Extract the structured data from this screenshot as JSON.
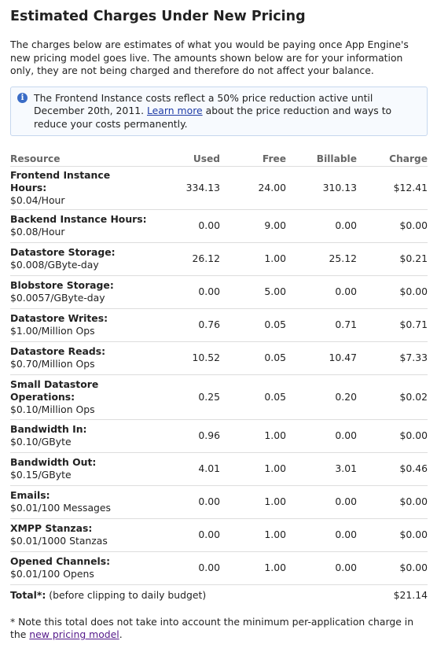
{
  "page": {
    "title": "Estimated Charges Under New Pricing",
    "intro": "The charges below are estimates of what you would be paying once App Engine's new pricing model goes live. The amounts shown below are for your information only, they are not being charged and therefore do not affect your balance."
  },
  "notice": {
    "icon": "info-icon",
    "text_before": "The Frontend Instance costs reflect a 50% price reduction active until December 20th, 2011.",
    "link_label": "Learn more",
    "text_after": "about the price reduction and ways to reduce your costs permanently."
  },
  "table": {
    "headers": {
      "resource": "Resource",
      "used": "Used",
      "free": "Free",
      "billable": "Billable",
      "charge": "Charge"
    },
    "rows": [
      {
        "name": "Frontend Instance Hours:",
        "rate": "$0.04/Hour",
        "used": "334.13",
        "free": "24.00",
        "billable": "310.13",
        "charge": "$12.41"
      },
      {
        "name": "Backend Instance Hours:",
        "rate": "$0.08/Hour",
        "used": "0.00",
        "free": "9.00",
        "billable": "0.00",
        "charge": "$0.00"
      },
      {
        "name": "Datastore Storage:",
        "rate": "$0.008/GByte-day",
        "used": "26.12",
        "free": "1.00",
        "billable": "25.12",
        "charge": "$0.21"
      },
      {
        "name": "Blobstore Storage:",
        "rate": "$0.0057/GByte-day",
        "used": "0.00",
        "free": "5.00",
        "billable": "0.00",
        "charge": "$0.00"
      },
      {
        "name": "Datastore Writes:",
        "rate": "$1.00/Million Ops",
        "used": "0.76",
        "free": "0.05",
        "billable": "0.71",
        "charge": "$0.71"
      },
      {
        "name": "Datastore Reads:",
        "rate": "$0.70/Million Ops",
        "used": "10.52",
        "free": "0.05",
        "billable": "10.47",
        "charge": "$7.33"
      },
      {
        "name": "Small Datastore Operations:",
        "rate": "$0.10/Million Ops",
        "used": "0.25",
        "free": "0.05",
        "billable": "0.20",
        "charge": "$0.02"
      },
      {
        "name": "Bandwidth In:",
        "rate": "$0.10/GByte",
        "used": "0.96",
        "free": "1.00",
        "billable": "0.00",
        "charge": "$0.00"
      },
      {
        "name": "Bandwidth Out:",
        "rate": "$0.15/GByte",
        "used": "4.01",
        "free": "1.00",
        "billable": "3.01",
        "charge": "$0.46"
      },
      {
        "name": "Emails:",
        "rate": "$0.01/100 Messages",
        "used": "0.00",
        "free": "1.00",
        "billable": "0.00",
        "charge": "$0.00"
      },
      {
        "name": "XMPP Stanzas:",
        "rate": "$0.01/1000 Stanzas",
        "used": "0.00",
        "free": "1.00",
        "billable": "0.00",
        "charge": "$0.00"
      },
      {
        "name": "Opened Channels:",
        "rate": "$0.01/100 Opens",
        "used": "0.00",
        "free": "1.00",
        "billable": "0.00",
        "charge": "$0.00"
      }
    ],
    "total": {
      "label": "Total*:",
      "note": "(before clipping to daily budget)",
      "charge": "$21.14"
    }
  },
  "footnote": {
    "text": "* Note this total does not take into account the minimum per-application charge in the",
    "link_label": "new pricing model",
    "end": "."
  },
  "colors": {
    "link": "#1f3ca6",
    "visited_link": "#551a8b",
    "notice_border": "#c6d7ee",
    "notice_background": "#f7fafe",
    "header_text": "#666666",
    "row_border": "#dddddd"
  }
}
